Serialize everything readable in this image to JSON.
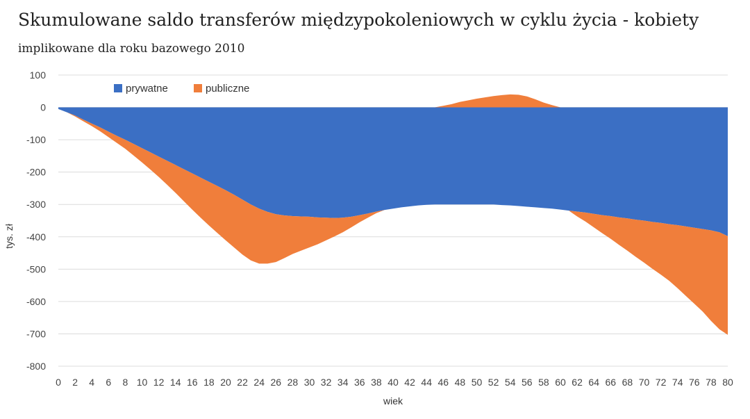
{
  "chart_data": {
    "type": "area",
    "title": "Skumulowane saldo transferów międzypokoleniowych w cyklu życia - kobiety",
    "subtitle": "implikowane dla roku bazowego 2010",
    "xlabel": "wiek",
    "ylabel": "tys. zł",
    "ylim": [
      -800,
      100
    ],
    "yticks": [
      100,
      0,
      -100,
      -200,
      -300,
      -400,
      -500,
      -600,
      -700,
      -800
    ],
    "x": [
      0,
      1,
      2,
      3,
      4,
      5,
      6,
      7,
      8,
      9,
      10,
      11,
      12,
      13,
      14,
      15,
      16,
      17,
      18,
      19,
      20,
      21,
      22,
      23,
      24,
      25,
      26,
      27,
      28,
      29,
      30,
      31,
      32,
      33,
      34,
      35,
      36,
      37,
      38,
      39,
      40,
      41,
      42,
      43,
      44,
      45,
      46,
      47,
      48,
      49,
      50,
      51,
      52,
      53,
      54,
      55,
      56,
      57,
      58,
      59,
      60,
      61,
      62,
      63,
      64,
      65,
      66,
      67,
      68,
      69,
      70,
      71,
      72,
      73,
      74,
      75,
      76,
      77,
      78,
      79,
      80
    ],
    "xtick_labels": [
      "0",
      "2",
      "4",
      "6",
      "8",
      "10",
      "12",
      "14",
      "16",
      "18",
      "20",
      "22",
      "24",
      "26",
      "28",
      "30",
      "32",
      "34",
      "36",
      "38",
      "40",
      "42",
      "44",
      "46",
      "48",
      "50",
      "52",
      "54",
      "56",
      "58",
      "60",
      "62",
      "64",
      "66",
      "68",
      "70",
      "72",
      "74",
      "76",
      "78",
      "80"
    ],
    "grid": true,
    "legend_position": "top-left",
    "series": [
      {
        "name": "prywatne",
        "color": "#3B6FC4",
        "values": [
          -5,
          -15,
          -25,
          -38,
          -50,
          -62,
          -75,
          -88,
          -100,
          -113,
          -126,
          -139,
          -152,
          -165,
          -178,
          -191,
          -204,
          -217,
          -230,
          -243,
          -256,
          -270,
          -285,
          -300,
          -313,
          -323,
          -330,
          -334,
          -336,
          -337,
          -338,
          -340,
          -341,
          -342,
          -341,
          -338,
          -333,
          -328,
          -322,
          -317,
          -313,
          -309,
          -306,
          -303,
          -301,
          -300,
          -300,
          -300,
          -300,
          -300,
          -300,
          -300,
          -300,
          -302,
          -303,
          -305,
          -307,
          -309,
          -311,
          -313,
          -316,
          -319,
          -322,
          -325,
          -329,
          -333,
          -336,
          -340,
          -343,
          -347,
          -350,
          -354,
          -357,
          -361,
          -364,
          -368,
          -372,
          -376,
          -380,
          -386,
          -398
        ]
      },
      {
        "name": "publiczne",
        "color": "#F07E3B",
        "values": [
          0,
          0,
          -3,
          -5,
          -8,
          -12,
          -17,
          -22,
          -28,
          -36,
          -44,
          -53,
          -63,
          -74,
          -86,
          -99,
          -112,
          -124,
          -135,
          -145,
          -155,
          -163,
          -170,
          -173,
          -170,
          -160,
          -148,
          -132,
          -117,
          -106,
          -95,
          -83,
          -70,
          -57,
          -45,
          -33,
          -22,
          -13,
          -5,
          0,
          0,
          0,
          0,
          0,
          0,
          0,
          5,
          10,
          17,
          22,
          27,
          31,
          35,
          38,
          40,
          39,
          34,
          25,
          15,
          7,
          0,
          0,
          -15,
          -28,
          -42,
          -56,
          -70,
          -85,
          -100,
          -115,
          -130,
          -145,
          -160,
          -175,
          -195,
          -215,
          -235,
          -255,
          -280,
          -300,
          -305
        ]
      }
    ]
  }
}
